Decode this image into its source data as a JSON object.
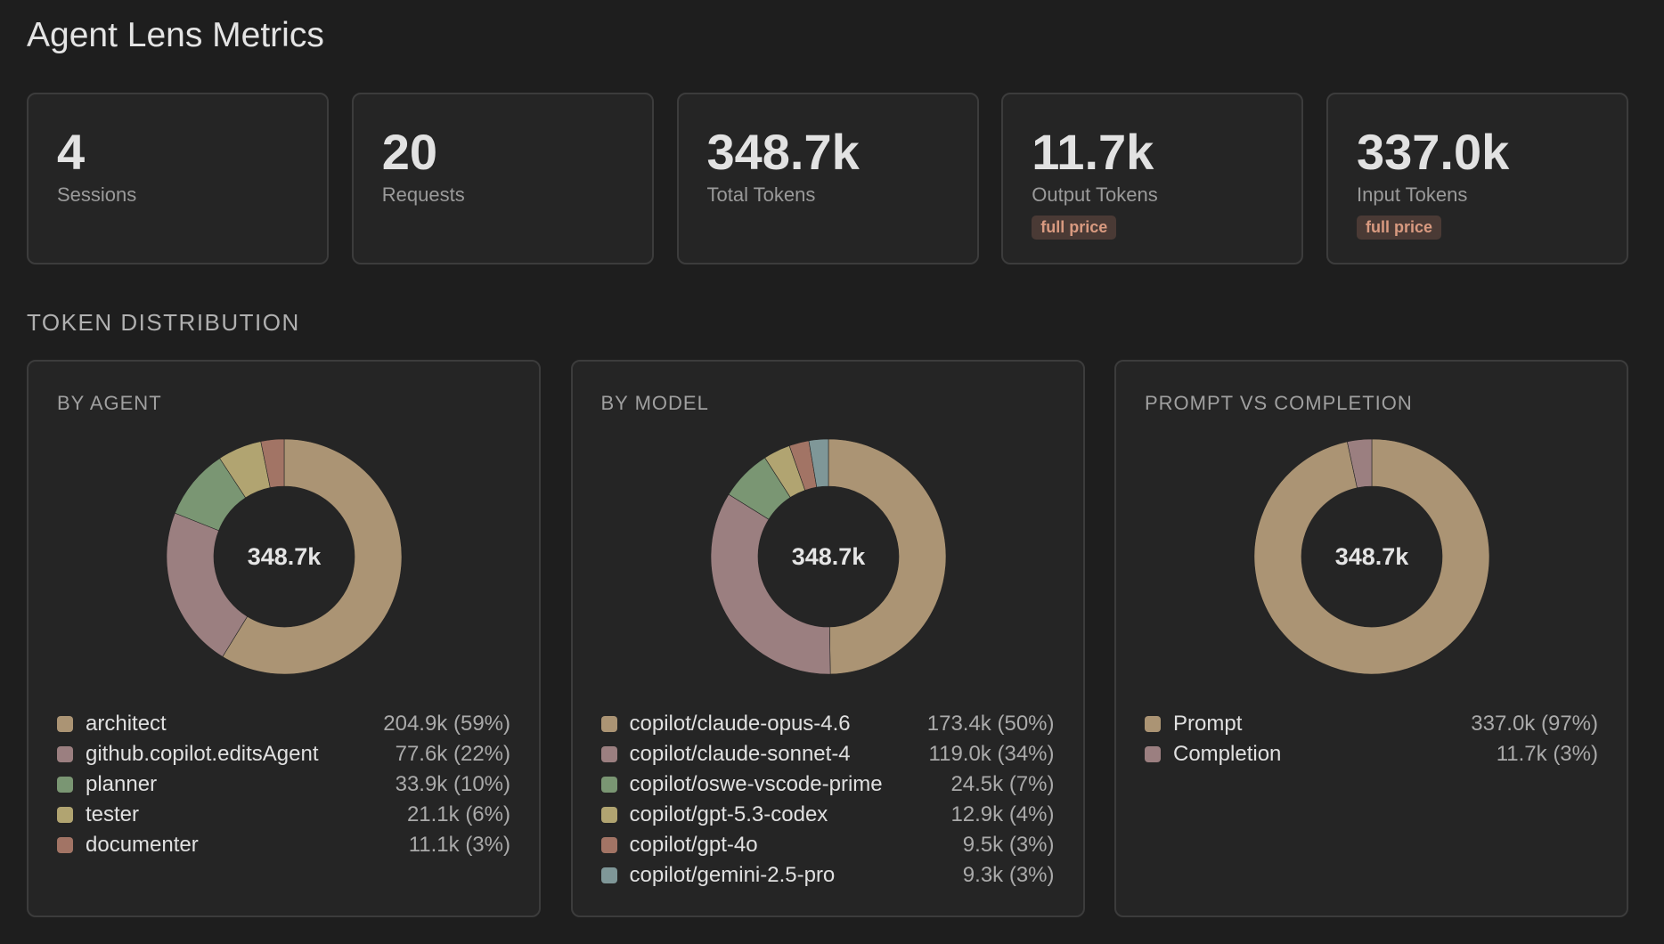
{
  "title": "Agent Lens Metrics",
  "stats": [
    {
      "value": "4",
      "label": "Sessions"
    },
    {
      "value": "20",
      "label": "Requests"
    },
    {
      "value": "348.7k",
      "label": "Total Tokens"
    },
    {
      "value": "11.7k",
      "label": "Output Tokens",
      "badge": "full price"
    },
    {
      "value": "337.0k",
      "label": "Input Tokens",
      "badge": "full price"
    }
  ],
  "section_title": "TOKEN DISTRIBUTION",
  "chart_data": [
    {
      "type": "pie",
      "title": "BY AGENT",
      "center_label": "348.7k",
      "items": [
        {
          "name": "architect",
          "value": 204.9,
          "label": "204.9k (59%)",
          "color": "#ab9474"
        },
        {
          "name": "github.copilot.editsAgent",
          "value": 77.6,
          "label": "77.6k (22%)",
          "color": "#9b7f80"
        },
        {
          "name": "planner",
          "value": 33.9,
          "label": "33.9k (10%)",
          "color": "#7a9673"
        },
        {
          "name": "tester",
          "value": 21.1,
          "label": "21.1k (6%)",
          "color": "#b1a471"
        },
        {
          "name": "documenter",
          "value": 11.1,
          "label": "11.1k (3%)",
          "color": "#a27465"
        }
      ]
    },
    {
      "type": "pie",
      "title": "BY MODEL",
      "center_label": "348.7k",
      "items": [
        {
          "name": "copilot/claude-opus-4.6",
          "value": 173.4,
          "label": "173.4k (50%)",
          "color": "#ab9474"
        },
        {
          "name": "copilot/claude-sonnet-4",
          "value": 119.0,
          "label": "119.0k (34%)",
          "color": "#9b7f80"
        },
        {
          "name": "copilot/oswe-vscode-prime",
          "value": 24.5,
          "label": "24.5k (7%)",
          "color": "#7a9673"
        },
        {
          "name": "copilot/gpt-5.3-codex",
          "value": 12.9,
          "label": "12.9k (4%)",
          "color": "#b1a471"
        },
        {
          "name": "copilot/gpt-4o",
          "value": 9.5,
          "label": "9.5k (3%)",
          "color": "#a27465"
        },
        {
          "name": "copilot/gemini-2.5-pro",
          "value": 9.3,
          "label": "9.3k (3%)",
          "color": "#7f9798"
        }
      ]
    },
    {
      "type": "pie",
      "title": "PROMPT VS COMPLETION",
      "center_label": "348.7k",
      "items": [
        {
          "name": "Prompt",
          "value": 337.0,
          "label": "337.0k (97%)",
          "color": "#ab9474"
        },
        {
          "name": "Completion",
          "value": 11.7,
          "label": "11.7k (3%)",
          "color": "#9b7f80"
        }
      ]
    }
  ]
}
